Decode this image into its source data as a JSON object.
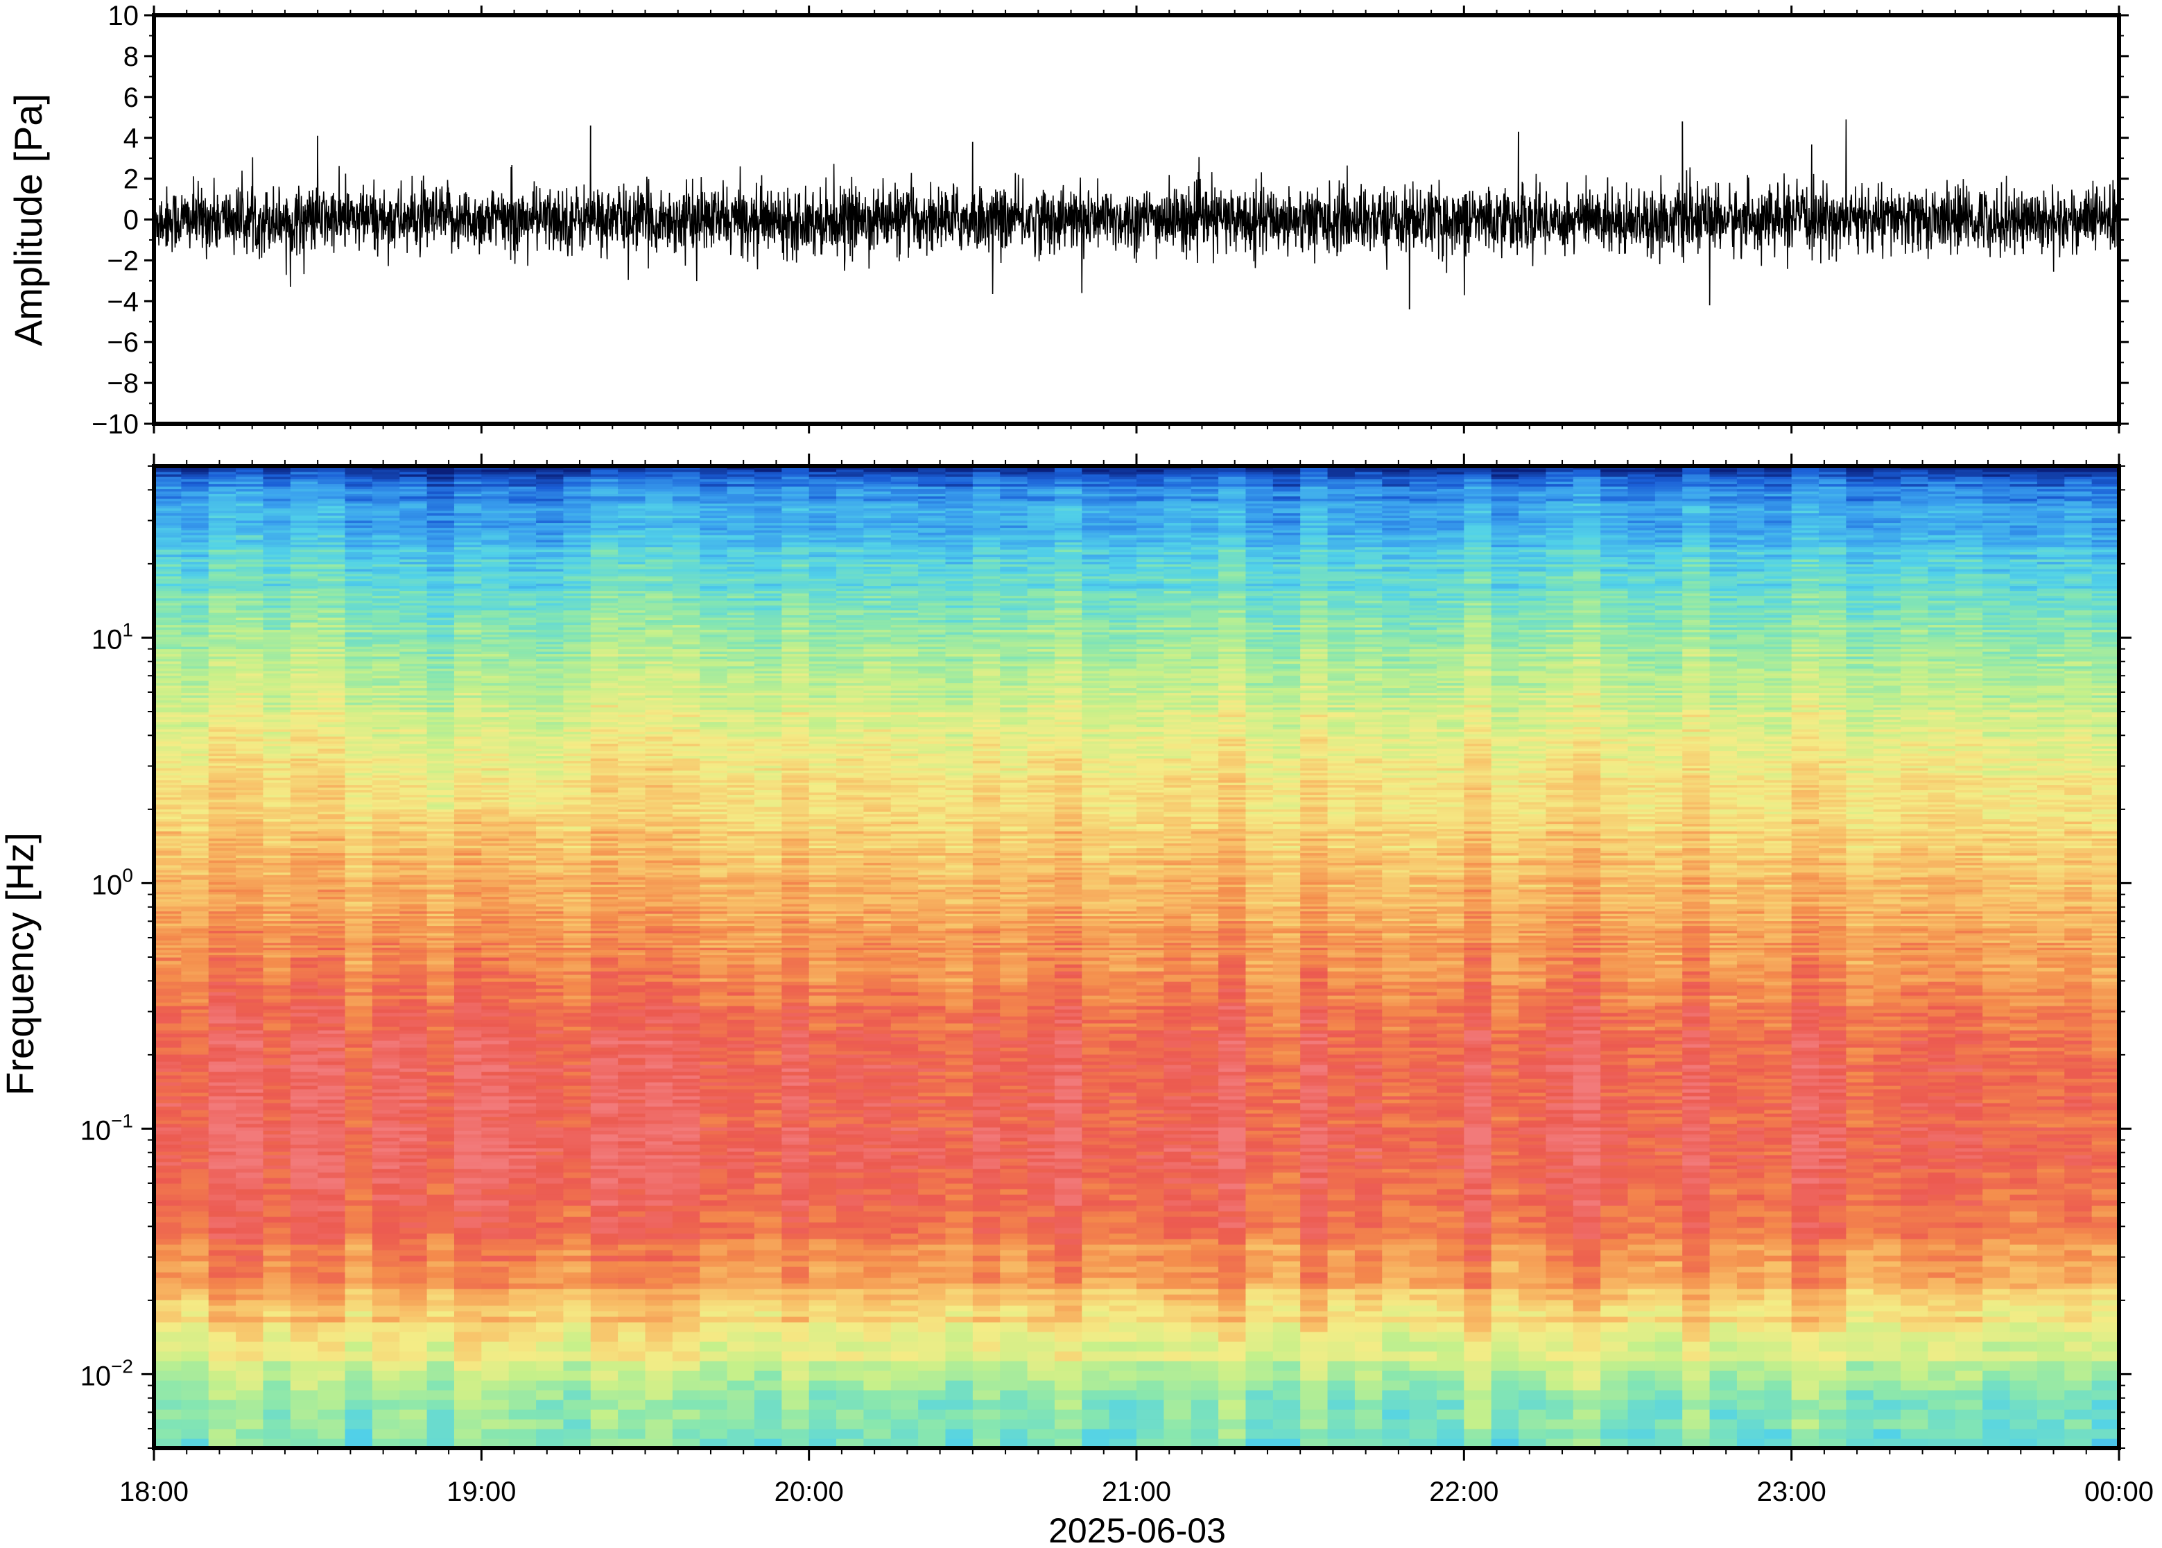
{
  "chart_data": [
    {
      "type": "line",
      "ylabel": "Amplitude [Pa]",
      "ylim": [
        -10,
        10
      ],
      "yticks": [
        -10,
        -8,
        -6,
        -4,
        -2,
        0,
        2,
        4,
        6,
        8,
        10
      ],
      "ytick_labels": [
        "−10",
        "−8",
        "−6",
        "−4",
        "−2",
        "0",
        "2",
        "4",
        "6",
        "8",
        "10"
      ],
      "xlim": [
        "2025-06-03T18:00",
        "2025-06-04T00:00"
      ],
      "series": [
        {
          "color": "#000000",
          "noise_sigma": 0.8,
          "peak_range": [
            -4.4,
            4.9
          ],
          "notable_peaks": [
            {
              "time": "18:30",
              "value": 4.1
            },
            {
              "time": "19:20",
              "value": 4.6
            },
            {
              "time": "20:30",
              "value": 3.8
            },
            {
              "time": "22:10",
              "value": 4.3
            },
            {
              "time": "22:40",
              "value": 4.8
            },
            {
              "time": "23:10",
              "value": 4.9
            },
            {
              "time": "21:50",
              "value": -4.4
            },
            {
              "time": "22:45",
              "value": -4.2
            },
            {
              "time": "20:50",
              "value": -3.6
            },
            {
              "time": "18:25",
              "value": -3.3
            }
          ]
        }
      ]
    },
    {
      "type": "heatmap",
      "ylabel": "Frequency [Hz]",
      "xlabel": "2025-06-03",
      "yscale": "log",
      "ylim": [
        0.005,
        50
      ],
      "ytick_labels": [
        {
          "base": "10",
          "exp": "1",
          "value": 10
        },
        {
          "base": "10",
          "exp": "0",
          "value": 1
        },
        {
          "base": "10",
          "exp": "−1",
          "value": 0.1
        },
        {
          "base": "10",
          "exp": "−2",
          "value": 0.01
        }
      ],
      "xticks": [
        "18:00",
        "19:00",
        "20:00",
        "21:00",
        "22:00",
        "23:00",
        "00:00"
      ],
      "colormap": [
        "#0a1f7a",
        "#1a5ed6",
        "#3aa0ee",
        "#52d2e8",
        "#86e6b0",
        "#c6f08a",
        "#f4ec86",
        "#f8c068",
        "#f48c4c",
        "#ec5a50",
        "#f27a7a"
      ],
      "power_profile": [
        {
          "freq": 0.006,
          "level": 0.38
        },
        {
          "freq": 0.01,
          "level": 0.5
        },
        {
          "freq": 0.015,
          "level": 0.62
        },
        {
          "freq": 0.025,
          "level": 0.76
        },
        {
          "freq": 0.04,
          "level": 0.86
        },
        {
          "freq": 0.08,
          "level": 0.92
        },
        {
          "freq": 0.2,
          "level": 0.9
        },
        {
          "freq": 0.5,
          "level": 0.8
        },
        {
          "freq": 1,
          "level": 0.72
        },
        {
          "freq": 3,
          "level": 0.62
        },
        {
          "freq": 8,
          "level": 0.48
        },
        {
          "freq": 20,
          "level": 0.32
        },
        {
          "freq": 40,
          "level": 0.18
        },
        {
          "freq": 50,
          "level": 0.0
        }
      ]
    }
  ]
}
